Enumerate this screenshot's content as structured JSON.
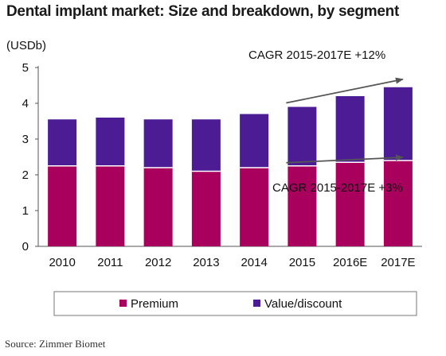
{
  "chart_data": {
    "type": "bar",
    "stacked": true,
    "title": "Dental implant market: Size and breakdown, by segment",
    "ylabel": "(USDb)",
    "ylim": [
      0,
      5
    ],
    "yticks": [
      "0",
      "1",
      "2",
      "3",
      "4",
      "5"
    ],
    "categories": [
      "2010",
      "2011",
      "2012",
      "2013",
      "2014",
      "2015",
      "2016E",
      "2017E"
    ],
    "series": [
      {
        "name": "Premium",
        "color": "#a8005c",
        "values": [
          2.25,
          2.25,
          2.2,
          2.1,
          2.2,
          2.25,
          2.35,
          2.4
        ]
      },
      {
        "name": "Value/discount",
        "color": "#4b1c94",
        "values": [
          1.3,
          1.35,
          1.35,
          1.45,
          1.5,
          1.65,
          1.85,
          2.05
        ]
      }
    ],
    "annotations": [
      {
        "text": "CAGR 2015-2017E +12%",
        "series": "Value/discount"
      },
      {
        "text": "CAGR 2015-2017E +3%",
        "series": "Premium"
      }
    ],
    "legend_position": "bottom",
    "grid": false
  },
  "source": "Source: Zimmer Biomet"
}
